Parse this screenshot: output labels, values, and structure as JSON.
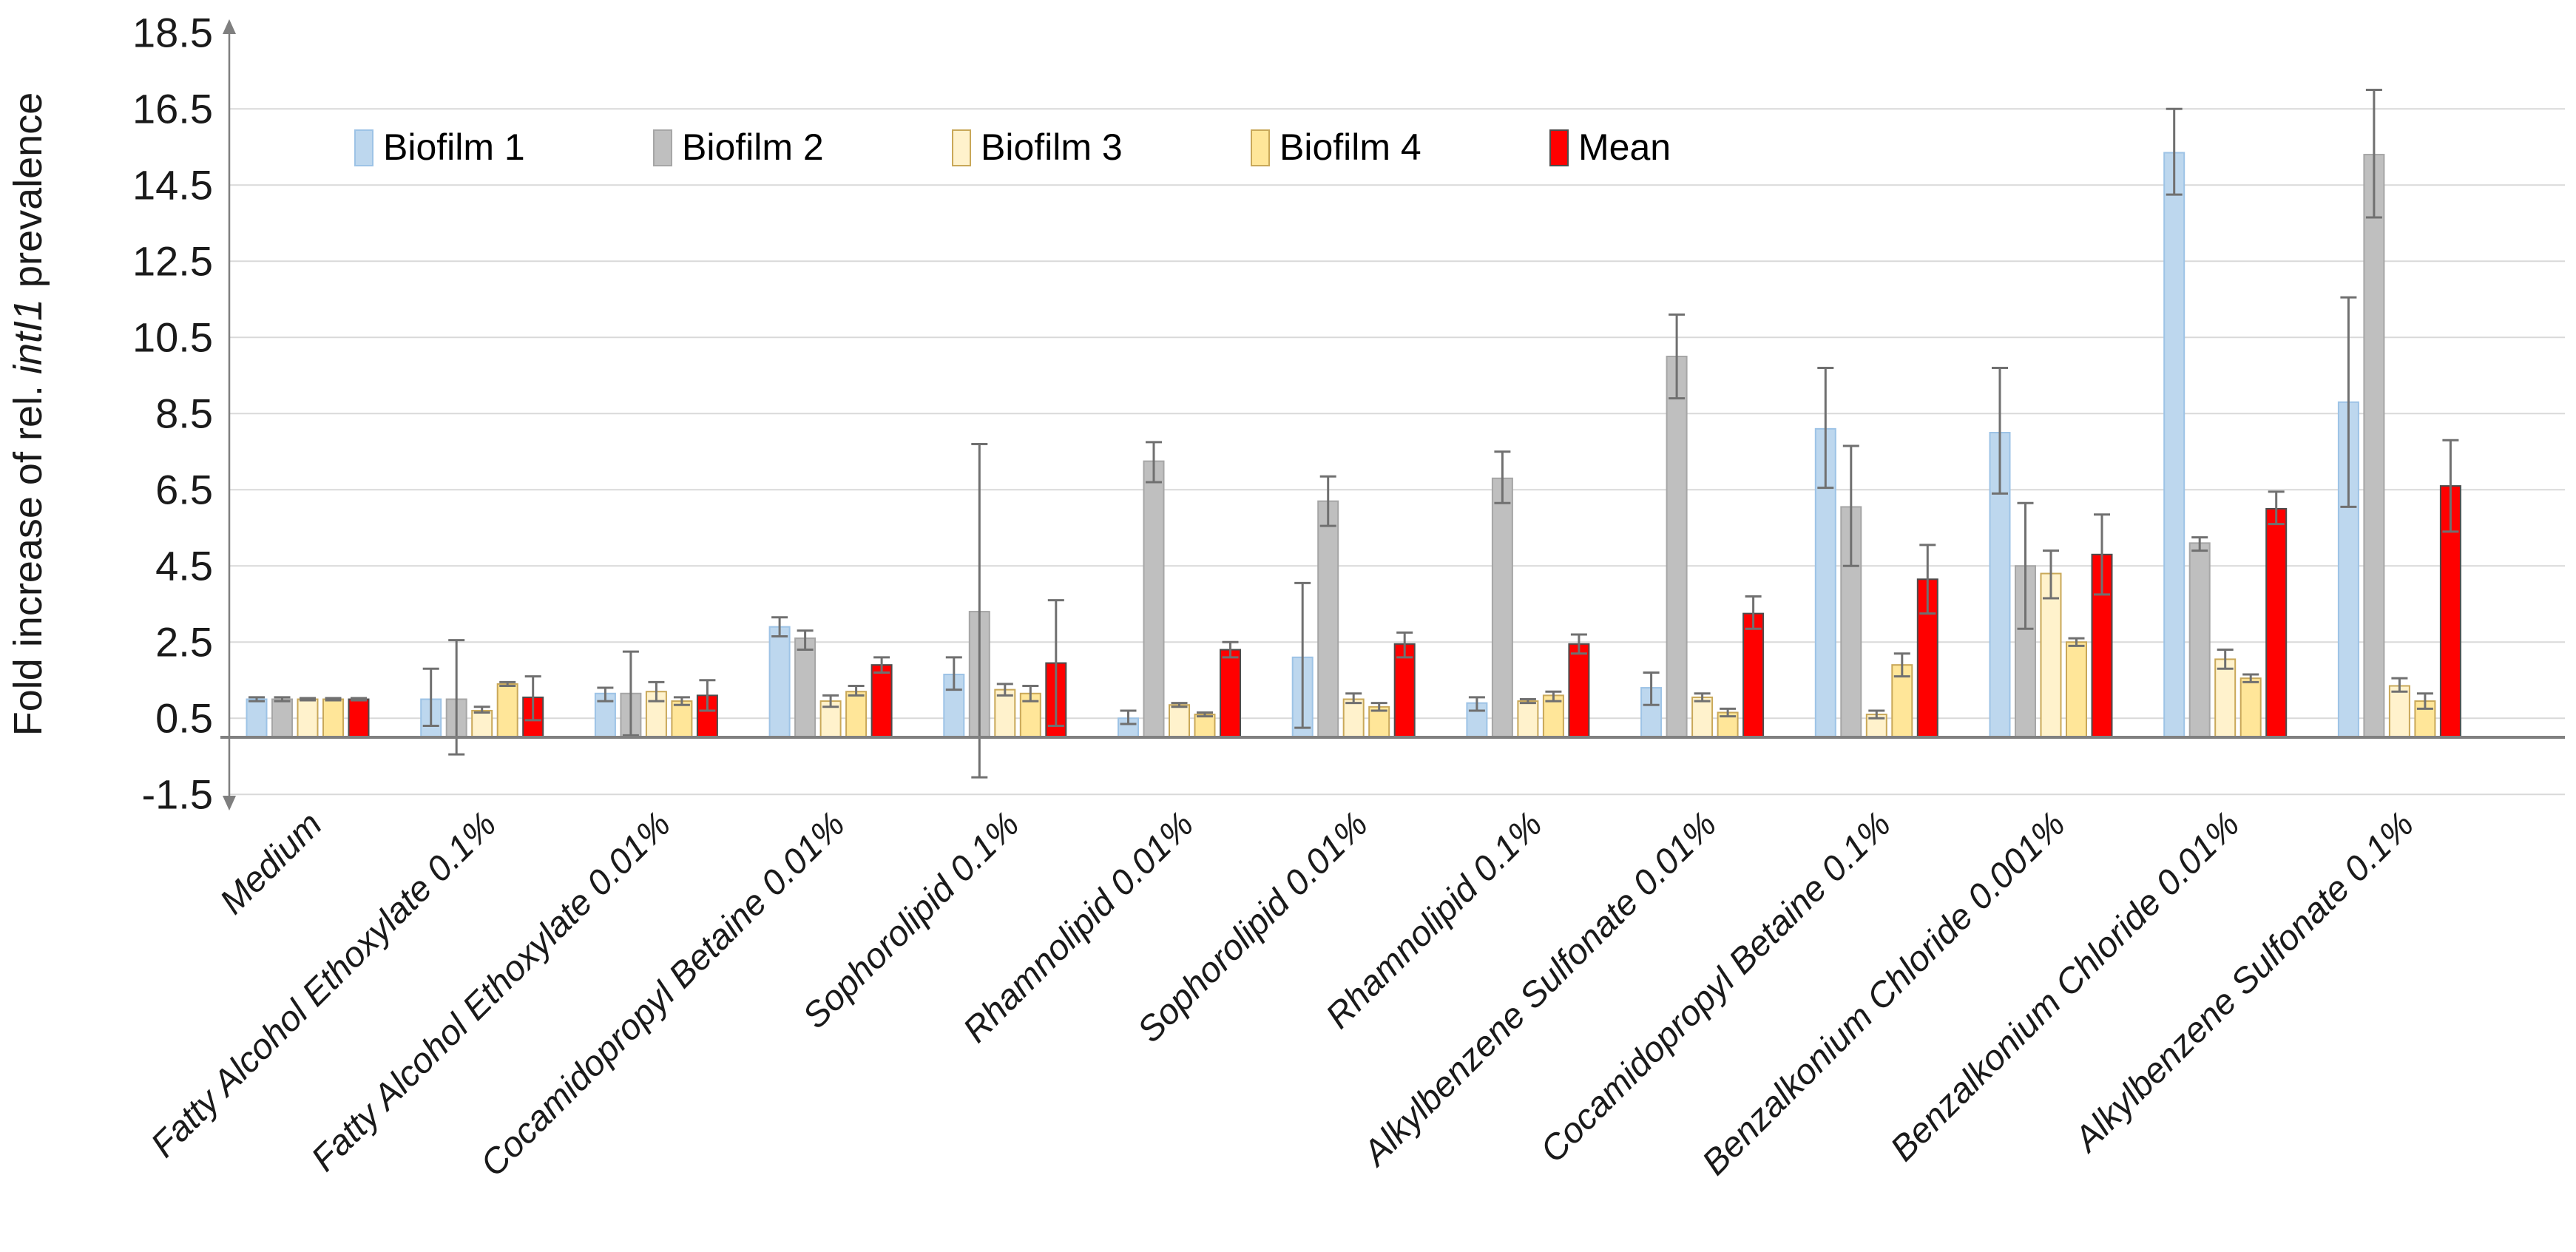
{
  "chart_data": {
    "type": "bar",
    "title": "",
    "ylabel_parts": [
      {
        "text": "Fold increase of rel. ",
        "italic": false
      },
      {
        "text": "intI1",
        "italic": true
      },
      {
        "text": " prevalence",
        "italic": false
      }
    ],
    "ylim": [
      -1.5,
      18.5
    ],
    "y_ticks": [
      18.5,
      16.5,
      14.5,
      12.5,
      10.5,
      8.5,
      6.5,
      4.5,
      2.5,
      0.5,
      -1.5
    ],
    "grid": true,
    "legend_position": "top-inside",
    "categories": [
      "Medium",
      "Fatty Alcohol Ethoxylate 0.1%",
      "Fatty Alcohol Ethoxylate 0.01%",
      "Cocamidopropyl Betaine 0.01%",
      "Sophorolipid 0.1%",
      "Rhamnolipid 0.01%",
      "Sophorolipid 0.01%",
      "Rhamnolipid 0.1%",
      "Alkylbenzene Sulfonate  0.01%",
      "Cocamidopropyl Betaine 0.1%",
      "Benzalkonium Chloride 0.001%",
      "Benzalkonium Chloride 0.01%",
      "Alkylbenzene Sulfonate 0.1%"
    ],
    "series": [
      {
        "name": "Biofilm 1",
        "color": "#BDD7EE",
        "border": "#9DC3E6",
        "values": [
          1.0,
          1.0,
          1.15,
          2.9,
          1.65,
          0.5,
          2.1,
          0.9,
          1.3,
          8.1,
          8.0,
          15.35,
          8.8
        ],
        "err_lo": [
          0.95,
          0.3,
          0.95,
          2.65,
          1.25,
          0.35,
          0.25,
          0.7,
          0.85,
          6.55,
          6.4,
          14.25,
          6.05
        ],
        "err_hi": [
          1.05,
          1.8,
          1.3,
          3.15,
          2.1,
          0.7,
          4.05,
          1.05,
          1.7,
          9.7,
          9.7,
          16.5,
          11.55
        ]
      },
      {
        "name": "Biofilm 2",
        "color": "#BFBFBF",
        "border": "#A6A6A6",
        "values": [
          1.0,
          1.0,
          1.15,
          2.6,
          3.3,
          7.25,
          6.2,
          6.8,
          10.0,
          6.05,
          4.5,
          5.1,
          15.3
        ],
        "err_lo": [
          0.95,
          -0.45,
          0.05,
          2.3,
          -1.05,
          6.7,
          5.55,
          6.15,
          8.9,
          4.5,
          2.85,
          4.9,
          13.65
        ],
        "err_hi": [
          1.05,
          2.55,
          2.25,
          2.8,
          7.7,
          7.75,
          6.85,
          7.5,
          11.1,
          7.65,
          6.15,
          5.25,
          17.0
        ]
      },
      {
        "name": "Biofilm 3",
        "color": "#FFF2CC",
        "border": "#C9A859",
        "values": [
          1.0,
          0.7,
          1.2,
          0.95,
          1.25,
          0.85,
          1.0,
          0.95,
          1.05,
          0.6,
          4.3,
          2.05,
          1.35
        ],
        "err_lo": [
          0.97,
          0.65,
          0.95,
          0.8,
          1.1,
          0.8,
          0.9,
          0.9,
          0.95,
          0.5,
          3.65,
          1.8,
          1.2
        ],
        "err_hi": [
          1.03,
          0.8,
          1.45,
          1.1,
          1.4,
          0.9,
          1.15,
          1.0,
          1.15,
          0.7,
          4.9,
          2.3,
          1.55
        ]
      },
      {
        "name": "Biofilm 4",
        "color": "#FFE699",
        "border": "#C9A859",
        "values": [
          1.0,
          1.4,
          0.95,
          1.2,
          1.15,
          0.6,
          0.8,
          1.1,
          0.65,
          1.9,
          2.5,
          1.55,
          0.95
        ],
        "err_lo": [
          0.97,
          1.35,
          0.85,
          1.1,
          0.95,
          0.55,
          0.7,
          0.95,
          0.55,
          1.6,
          2.4,
          1.45,
          0.75
        ],
        "err_hi": [
          1.03,
          1.45,
          1.05,
          1.35,
          1.35,
          0.65,
          0.9,
          1.2,
          0.75,
          2.2,
          2.6,
          1.65,
          1.15
        ]
      },
      {
        "name": "Mean",
        "color": "#FF0000",
        "border": "#4D4D4D",
        "values": [
          1.0,
          1.05,
          1.1,
          1.9,
          1.95,
          2.3,
          2.45,
          2.45,
          3.25,
          4.15,
          4.8,
          6.0,
          6.6
        ],
        "err_lo": [
          0.97,
          0.45,
          0.7,
          1.7,
          0.3,
          2.1,
          2.1,
          2.2,
          2.85,
          3.25,
          3.75,
          5.6,
          5.4
        ],
        "err_hi": [
          1.03,
          1.6,
          1.5,
          2.1,
          3.6,
          2.5,
          2.75,
          2.7,
          3.7,
          5.05,
          5.85,
          6.45,
          7.8
        ]
      }
    ],
    "colors": {
      "gridline": "#D9D9D9",
      "baseline": "#808080",
      "axis_line": "#7F7F7F",
      "error_bar": "#707070",
      "text": "#1A1A1A"
    }
  }
}
